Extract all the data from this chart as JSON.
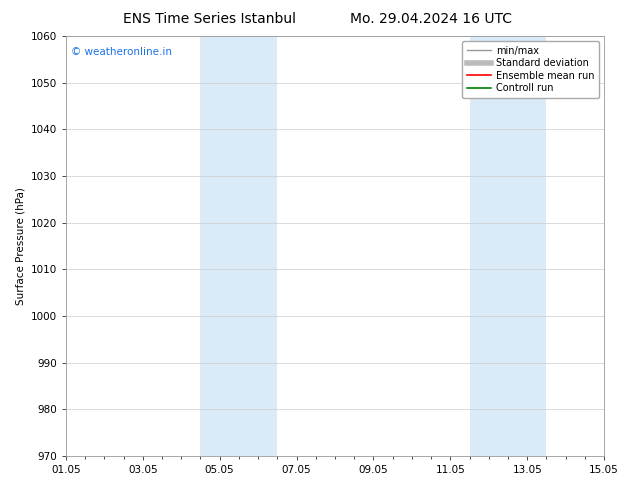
{
  "title_left": "ENS Time Series Istanbul",
  "title_right": "Mo. 29.04.2024 16 UTC",
  "ylabel": "Surface Pressure (hPa)",
  "ylim": [
    970,
    1060
  ],
  "yticks": [
    970,
    980,
    990,
    1000,
    1010,
    1020,
    1030,
    1040,
    1050,
    1060
  ],
  "xlim": [
    0,
    14
  ],
  "xtick_labels": [
    "01.05",
    "03.05",
    "05.05",
    "07.05",
    "09.05",
    "11.05",
    "13.05",
    "15.05"
  ],
  "xtick_positions": [
    0,
    2,
    4,
    6,
    8,
    10,
    12,
    14
  ],
  "shaded_bands": [
    {
      "x_start": 3.5,
      "x_end": 5.5,
      "color": "#daeaf7"
    },
    {
      "x_start": 10.5,
      "x_end": 12.5,
      "color": "#daeaf7"
    }
  ],
  "copyright_text": "© weatheronline.in",
  "copyright_color": "#1a73e8",
  "copyright_fontsize": 7.5,
  "legend_items": [
    {
      "label": "min/max",
      "color": "#999999",
      "lw": 1.0
    },
    {
      "label": "Standard deviation",
      "color": "#bbbbbb",
      "lw": 4.0
    },
    {
      "label": "Ensemble mean run",
      "color": "#ff0000",
      "lw": 1.2
    },
    {
      "label": "Controll run",
      "color": "#008000",
      "lw": 1.2
    }
  ],
  "background_color": "#ffffff",
  "grid_color": "#cccccc",
  "title_fontsize": 10,
  "ylabel_fontsize": 7.5,
  "tick_fontsize": 7.5,
  "legend_fontsize": 7,
  "minor_xtick_interval": 0.5
}
